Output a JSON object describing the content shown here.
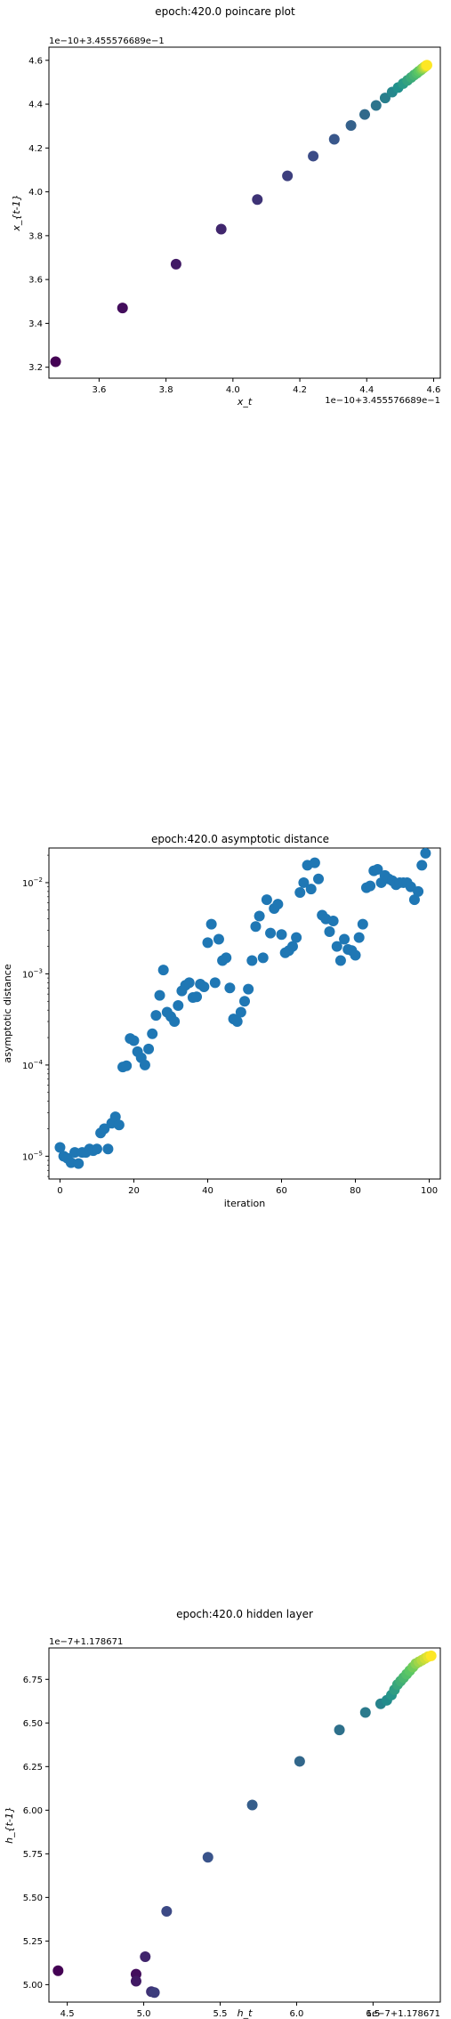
{
  "chart_data": [
    {
      "type": "scatter",
      "title": "epoch:420.0 poincare plot",
      "xlabel": "x_t",
      "ylabel": "x_{t-1}",
      "x_offset_label": "1e−10+3.455576689e−1",
      "y_offset_label": "1e−10+3.455576689e−1",
      "xlim": [
        3.45,
        4.62
      ],
      "ylim": [
        3.15,
        4.66
      ],
      "xticks": [
        3.6,
        3.8,
        4.0,
        4.2,
        4.4,
        4.6
      ],
      "yticks": [
        3.2,
        3.4,
        3.6,
        3.8,
        4.0,
        4.2,
        4.4,
        4.6
      ],
      "xtick_labels": [
        "3.6",
        "3.8",
        "4.0",
        "4.2",
        "4.4",
        "4.6"
      ],
      "ytick_labels": [
        "3.2",
        "3.4",
        "3.6",
        "3.8",
        "4.0",
        "4.2",
        "4.4",
        "4.6"
      ],
      "colormap": "viridis",
      "x": [
        3.47,
        3.67,
        3.83,
        3.965,
        4.073,
        4.163,
        4.24,
        4.303,
        4.353,
        4.394,
        4.428,
        4.455,
        4.476,
        4.494,
        4.509,
        4.522,
        4.533,
        4.542,
        4.55,
        4.556,
        4.562,
        4.566,
        4.57,
        4.573,
        4.576,
        4.578,
        4.58
      ],
      "y": [
        3.225,
        3.47,
        3.67,
        3.83,
        3.965,
        4.073,
        4.163,
        4.24,
        4.303,
        4.353,
        4.394,
        4.428,
        4.455,
        4.476,
        4.494,
        4.509,
        4.522,
        4.533,
        4.542,
        4.55,
        4.556,
        4.562,
        4.566,
        4.57,
        4.573,
        4.576,
        4.578
      ]
    },
    {
      "type": "scatter",
      "title": "epoch:420.0 asymptotic distance",
      "xlabel": "iteration",
      "ylabel": "asymptotic distance",
      "yscale": "log",
      "xlim": [
        -3,
        103
      ],
      "ylim_log10": [
        -5.25,
        -1.62
      ],
      "xticks": [
        0,
        20,
        40,
        60,
        80,
        100
      ],
      "xtick_labels": [
        "0",
        "20",
        "40",
        "60",
        "80",
        "100"
      ],
      "ytick_exponents": [
        -5,
        -4,
        -3,
        -2
      ],
      "color": "#1f77b4",
      "x": [
        0,
        1,
        2,
        3,
        4,
        5,
        6,
        7,
        8,
        9,
        10,
        11,
        12,
        13,
        14,
        15,
        16,
        17,
        18,
        19,
        20,
        21,
        22,
        23,
        24,
        25,
        26,
        27,
        28,
        29,
        30,
        31,
        32,
        33,
        34,
        35,
        36,
        37,
        38,
        39,
        40,
        41,
        42,
        43,
        44,
        45,
        46,
        47,
        48,
        49,
        50,
        51,
        52,
        53,
        54,
        55,
        56,
        57,
        58,
        59,
        60,
        61,
        62,
        63,
        64,
        65,
        66,
        67,
        68,
        69,
        70,
        71,
        72,
        73,
        74,
        75,
        76,
        77,
        78,
        79,
        80,
        81,
        82,
        83,
        84,
        85,
        86,
        87,
        88,
        89,
        90,
        91,
        92,
        93,
        94,
        95,
        96,
        97,
        98,
        99
      ],
      "y": [
        1.25e-05,
        1e-05,
        9.5e-06,
        8.5e-06,
        1.1e-05,
        8.3e-06,
        1.1e-05,
        1.1e-05,
        1.2e-05,
        1.15e-05,
        1.2e-05,
        1.8e-05,
        2e-05,
        1.2e-05,
        2.3e-05,
        2.7e-05,
        2.2e-05,
        9.5e-05,
        9.8e-05,
        0.000195,
        0.000185,
        0.00014,
        0.00012,
        0.0001,
        0.00015,
        0.00022,
        0.00035,
        0.00058,
        0.0011,
        0.00038,
        0.00034,
        0.0003,
        0.00045,
        0.00065,
        0.00075,
        0.0008,
        0.00055,
        0.00056,
        0.00077,
        0.00072,
        0.0022,
        0.0035,
        0.0008,
        0.0024,
        0.0014,
        0.0015,
        0.0007,
        0.00032,
        0.0003,
        0.00038,
        0.0005,
        0.00068,
        0.0014,
        0.0033,
        0.0043,
        0.0015,
        0.0065,
        0.0028,
        0.0052,
        0.0058,
        0.0027,
        0.0017,
        0.0018,
        0.002,
        0.0025,
        0.0078,
        0.01,
        0.0155,
        0.0085,
        0.0165,
        0.011,
        0.0044,
        0.004,
        0.0029,
        0.0038,
        0.002,
        0.0014,
        0.0024,
        0.00185,
        0.0018,
        0.0016,
        0.0025,
        0.0035,
        0.0088,
        0.0092,
        0.0135,
        0.014,
        0.01,
        0.012,
        0.011,
        0.0105,
        0.0095,
        0.01,
        0.01,
        0.01,
        0.009,
        0.0065,
        0.008,
        0.0155,
        0.021
      ]
    },
    {
      "type": "scatter",
      "title": "epoch:420.0 hidden layer",
      "xlabel": "h_t",
      "ylabel": "h_{t-1}",
      "x_offset_label": "1e−7+1.178671",
      "y_offset_label": "1e−7+1.178671",
      "xlim": [
        4.38,
        6.94
      ],
      "ylim": [
        4.9,
        6.93
      ],
      "xticks": [
        4.5,
        5.0,
        5.5,
        6.0,
        6.5
      ],
      "yticks": [
        5.0,
        5.25,
        5.5,
        5.75,
        6.0,
        6.25,
        6.5,
        6.75
      ],
      "xtick_labels": [
        "4.5",
        "5.0",
        "5.5",
        "6.0",
        "6.5"
      ],
      "ytick_labels": [
        "5.00",
        "5.25",
        "5.50",
        "5.75",
        "6.00",
        "6.25",
        "6.50",
        "6.75"
      ],
      "colormap": "viridis",
      "x": [
        4.44,
        4.95,
        4.95,
        5.01,
        5.05,
        5.07,
        5.15,
        5.42,
        5.71,
        6.02,
        6.28,
        6.45,
        6.55,
        6.59,
        6.62,
        6.64,
        6.66,
        6.68,
        6.7,
        6.72,
        6.74,
        6.76,
        6.78,
        6.8,
        6.82,
        6.84,
        6.86,
        6.88
      ],
      "y": [
        5.08,
        5.06,
        5.02,
        5.16,
        4.96,
        4.955,
        5.42,
        5.73,
        6.03,
        6.28,
        6.46,
        6.56,
        6.61,
        6.63,
        6.66,
        6.69,
        6.72,
        6.74,
        6.76,
        6.78,
        6.8,
        6.82,
        6.84,
        6.85,
        6.86,
        6.87,
        6.88,
        6.885
      ]
    }
  ]
}
